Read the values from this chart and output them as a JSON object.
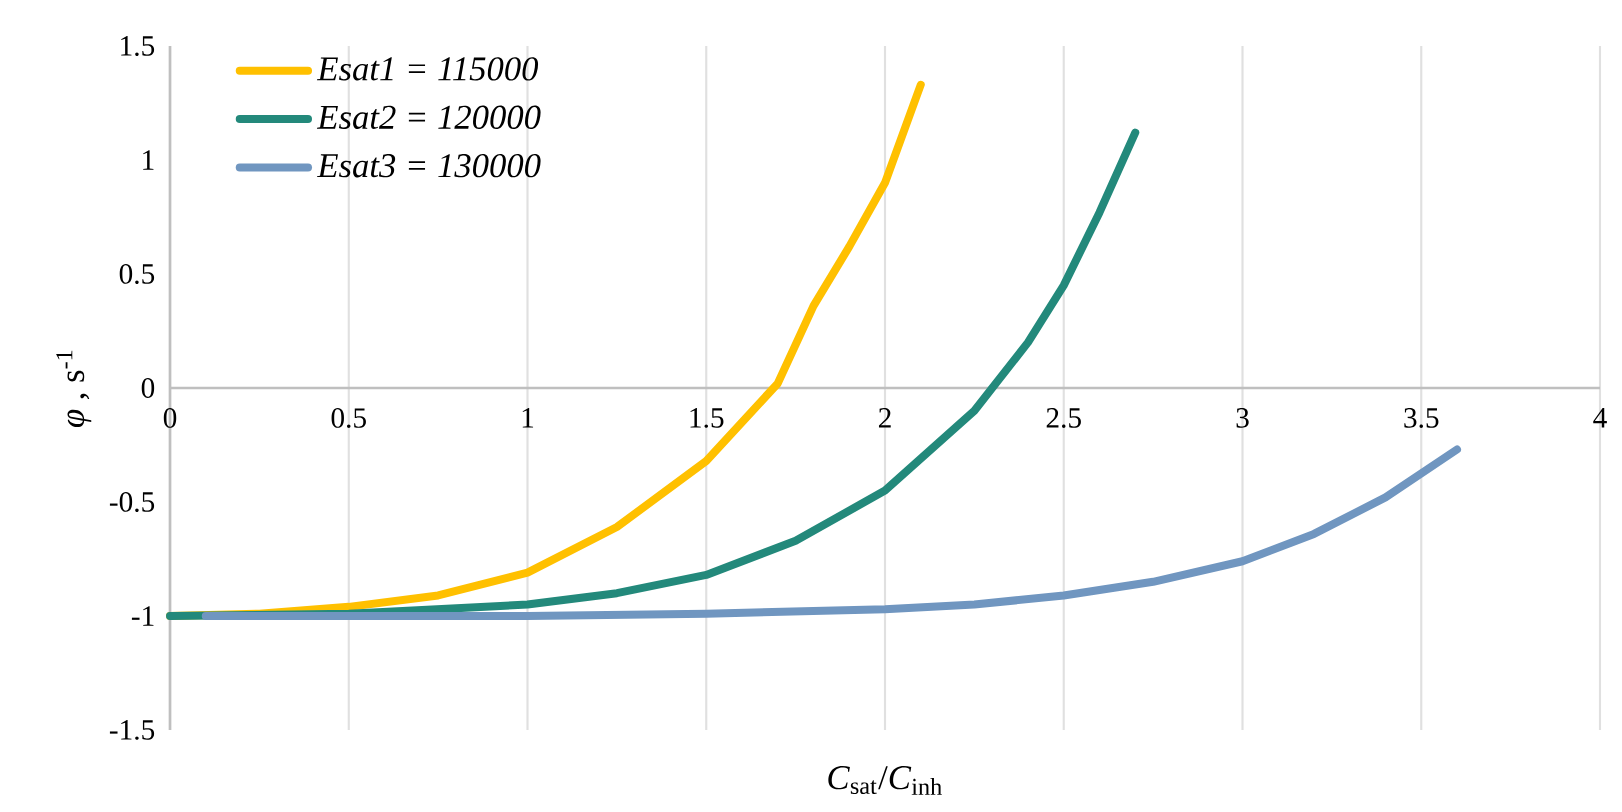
{
  "chart_data": {
    "type": "line",
    "xlabel": "*C*$_{sat}$/*C*$_{inh}$",
    "ylabel": "*φ* , s$^{-1}$",
    "xlim": [
      0,
      4
    ],
    "ylim": [
      -1.5,
      1.5
    ],
    "xticks": [
      0,
      0.5,
      1,
      1.5,
      2,
      2.5,
      3,
      3.5,
      4
    ],
    "yticks": [
      -1.5,
      -1,
      -0.5,
      0,
      0.5,
      1,
      1.5
    ],
    "grid": "x",
    "legend": "top left",
    "marker": "none",
    "line_style": "solid",
    "series": [
      {
        "name": "Esat1 = 115000",
        "color": "#ffc000",
        "x": [
          0,
          0.25,
          0.5,
          0.75,
          1,
          1.25,
          1.5,
          1.7,
          1.8,
          1.9,
          2.0,
          2.1
        ],
        "values": [
          -1,
          -0.99,
          -0.96,
          -0.91,
          -0.81,
          -0.61,
          -0.32,
          0.02,
          0.36,
          0.62,
          0.9,
          1.33
        ]
      },
      {
        "name": "Esat2 =  120000",
        "color": "#23897b",
        "x": [
          0,
          0.5,
          1,
          1.25,
          1.5,
          1.75,
          2,
          2.25,
          2.4,
          2.5,
          2.6,
          2.7
        ],
        "values": [
          -1,
          -0.99,
          -0.95,
          -0.9,
          -0.82,
          -0.67,
          -0.45,
          -0.1,
          0.2,
          0.45,
          0.77,
          1.12
        ]
      },
      {
        "name": "Esat3  = 130000",
        "color": "#7096c0",
        "x": [
          0.1,
          1,
          1.5,
          2,
          2.25,
          2.5,
          2.75,
          3,
          3.2,
          3.4,
          3.6
        ],
        "values": [
          -1,
          -1,
          -0.99,
          -0.97,
          -0.95,
          -0.91,
          -0.85,
          -0.76,
          -0.64,
          -0.48,
          -0.27
        ]
      }
    ]
  }
}
